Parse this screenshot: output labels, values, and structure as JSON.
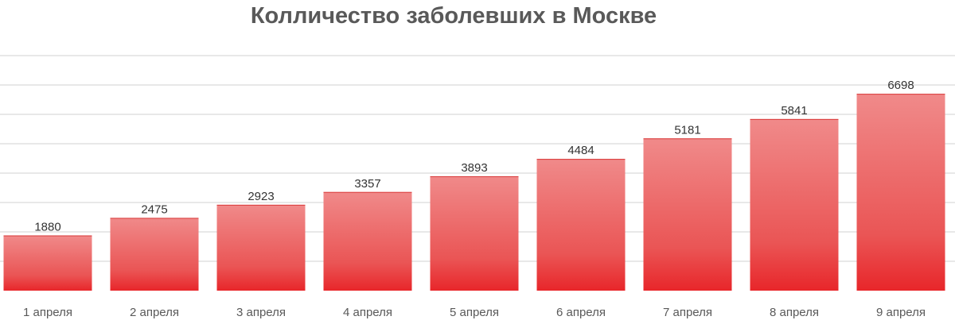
{
  "chart_data": {
    "type": "bar",
    "title": "Колличество заболевших в Москве",
    "xlabel": "",
    "ylabel": "",
    "categories": [
      "1 апреля",
      "2 апреля",
      "3 апреля",
      "4 апреля",
      "5 апреля",
      "6 апреля",
      "7 апреля",
      "8 апреля",
      "9 апреля"
    ],
    "values": [
      1880,
      2475,
      2923,
      3357,
      3893,
      4484,
      5181,
      5841,
      6698
    ],
    "ylim": [
      0,
      8000
    ],
    "gridlines": true,
    "legend": "none",
    "colors": {
      "bar_top": "#f08a8a",
      "bar_bottom": "#e8262a",
      "grid": "#d9d9d9",
      "title": "#595959"
    }
  }
}
